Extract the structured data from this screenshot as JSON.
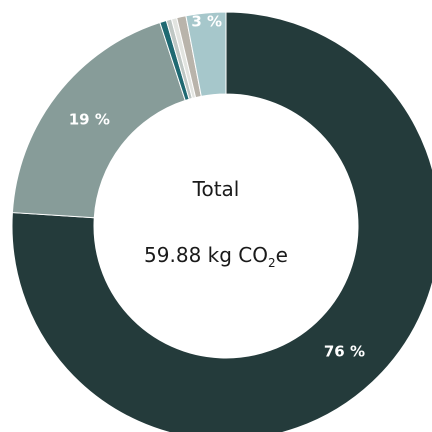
{
  "chart_data": {
    "type": "pie",
    "style": "donut",
    "center": {
      "title": "Total",
      "total_value": "59.88",
      "total_unit": "kg",
      "co2_prefix": "CO",
      "co2_subscript": "2",
      "co2_suffix": "e"
    },
    "slices": [
      {
        "value": 76.0,
        "label": "76 %",
        "color": "#243b3b",
        "show_label": true
      },
      {
        "value": 19.0,
        "label": "19 %",
        "color": "#879c99",
        "show_label": true
      },
      {
        "value": 0.5,
        "label": "",
        "color": "#1f6972",
        "show_label": false
      },
      {
        "value": 0.4,
        "label": "",
        "color": "#bfc7c4",
        "show_label": false
      },
      {
        "value": 0.4,
        "label": "",
        "color": "#e2e4e0",
        "show_label": false
      },
      {
        "value": 0.7,
        "label": "",
        "color": "#b9b4ab",
        "show_label": false
      },
      {
        "value": 3.0,
        "label": "3 %",
        "color": "#a6c7cb",
        "show_label": true
      }
    ]
  }
}
